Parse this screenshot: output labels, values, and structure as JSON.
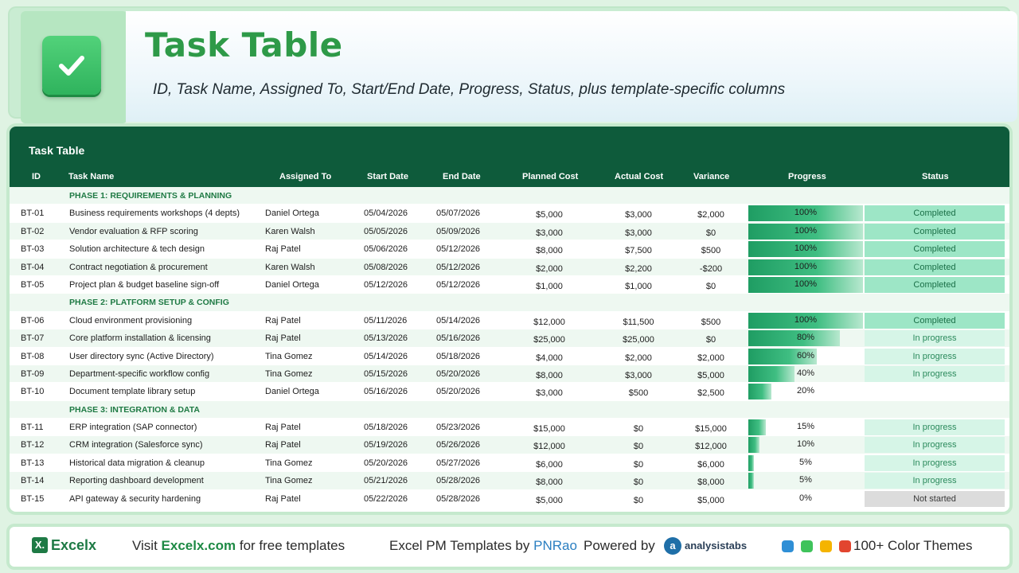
{
  "header": {
    "title": "Task Table",
    "subtitle": "ID, Task Name, Assigned To, Start/End Date, Progress, Status, plus template-specific columns",
    "icon": "checkmark-icon"
  },
  "table": {
    "title": "Task Table",
    "columns": {
      "id": "ID",
      "name": "Task Name",
      "assigned": "Assigned To",
      "start": "Start Date",
      "end": "End Date",
      "planned": "Planned Cost",
      "actual": "Actual Cost",
      "variance": "Variance",
      "progress": "Progress",
      "status": "Status"
    },
    "phases": [
      {
        "label": "PHASE 1: REQUIREMENTS & PLANNING",
        "tasks": [
          {
            "id": "BT-01",
            "name": "Business requirements workshops (4 depts)",
            "assigned": "Daniel Ortega",
            "start": "05/04/2026",
            "end": "05/07/2026",
            "planned": "$5,000",
            "actual": "$3,000",
            "variance": "$2,000",
            "progress_label": "100%",
            "progress": 100,
            "status": "Completed",
            "status_type": "completed"
          },
          {
            "id": "BT-02",
            "name": "Vendor evaluation & RFP scoring",
            "assigned": "Karen Walsh",
            "start": "05/05/2026",
            "end": "05/09/2026",
            "planned": "$3,000",
            "actual": "$3,000",
            "variance": "$0",
            "progress_label": "100%",
            "progress": 100,
            "status": "Completed",
            "status_type": "completed"
          },
          {
            "id": "BT-03",
            "name": "Solution architecture & tech design",
            "assigned": "Raj Patel",
            "start": "05/06/2026",
            "end": "05/12/2026",
            "planned": "$8,000",
            "actual": "$7,500",
            "variance": "$500",
            "progress_label": "100%",
            "progress": 100,
            "status": "Completed",
            "status_type": "completed"
          },
          {
            "id": "BT-04",
            "name": "Contract negotiation & procurement",
            "assigned": "Karen Walsh",
            "start": "05/08/2026",
            "end": "05/12/2026",
            "planned": "$2,000",
            "actual": "$2,200",
            "variance": "-$200",
            "progress_label": "100%",
            "progress": 100,
            "status": "Completed",
            "status_type": "completed"
          },
          {
            "id": "BT-05",
            "name": "Project plan & budget baseline sign-off",
            "assigned": "Daniel Ortega",
            "start": "05/12/2026",
            "end": "05/12/2026",
            "planned": "$1,000",
            "actual": "$1,000",
            "variance": "$0",
            "progress_label": "100%",
            "progress": 100,
            "status": "Completed",
            "status_type": "completed"
          }
        ]
      },
      {
        "label": "PHASE 2: PLATFORM SETUP & CONFIG",
        "tasks": [
          {
            "id": "BT-06",
            "name": "Cloud environment provisioning",
            "assigned": "Raj Patel",
            "start": "05/11/2026",
            "end": "05/14/2026",
            "planned": "$12,000",
            "actual": "$11,500",
            "variance": "$500",
            "progress_label": "100%",
            "progress": 100,
            "status": "Completed",
            "status_type": "completed"
          },
          {
            "id": "BT-07",
            "name": "Core platform installation & licensing",
            "assigned": "Raj Patel",
            "start": "05/13/2026",
            "end": "05/16/2026",
            "planned": "$25,000",
            "actual": "$25,000",
            "variance": "$0",
            "progress_label": "80%",
            "progress": 80,
            "status": "In progress",
            "status_type": "progress"
          },
          {
            "id": "BT-08",
            "name": "User directory sync (Active Directory)",
            "assigned": "Tina Gomez",
            "start": "05/14/2026",
            "end": "05/18/2026",
            "planned": "$4,000",
            "actual": "$2,000",
            "variance": "$2,000",
            "progress_label": "60%",
            "progress": 60,
            "status": "In progress",
            "status_type": "progress"
          },
          {
            "id": "BT-09",
            "name": "Department-specific workflow config",
            "assigned": "Tina Gomez",
            "start": "05/15/2026",
            "end": "05/20/2026",
            "planned": "$8,000",
            "actual": "$3,000",
            "variance": "$5,000",
            "progress_label": "40%",
            "progress": 40,
            "status": "In progress",
            "status_type": "progress"
          },
          {
            "id": "BT-10",
            "name": "Document template library setup",
            "assigned": "Daniel Ortega",
            "start": "05/16/2026",
            "end": "05/20/2026",
            "planned": "$3,000",
            "actual": "$500",
            "variance": "$2,500",
            "progress_label": "20%",
            "progress": 20,
            "status": "",
            "status_type": "none"
          }
        ]
      },
      {
        "label": "PHASE 3: INTEGRATION & DATA",
        "tasks": [
          {
            "id": "BT-11",
            "name": "ERP integration (SAP connector)",
            "assigned": "Raj Patel",
            "start": "05/18/2026",
            "end": "05/23/2026",
            "planned": "$15,000",
            "actual": "$0",
            "variance": "$15,000",
            "progress_label": "15%",
            "progress": 15,
            "status": "In progress",
            "status_type": "progress"
          },
          {
            "id": "BT-12",
            "name": "CRM integration (Salesforce sync)",
            "assigned": "Raj Patel",
            "start": "05/19/2026",
            "end": "05/26/2026",
            "planned": "$12,000",
            "actual": "$0",
            "variance": "$12,000",
            "progress_label": "10%",
            "progress": 10,
            "status": "In progress",
            "status_type": "progress"
          },
          {
            "id": "BT-13",
            "name": "Historical data migration & cleanup",
            "assigned": "Tina Gomez",
            "start": "05/20/2026",
            "end": "05/27/2026",
            "planned": "$6,000",
            "actual": "$0",
            "variance": "$6,000",
            "progress_label": "5%",
            "progress": 5,
            "status": "In progress",
            "status_type": "progress"
          },
          {
            "id": "BT-14",
            "name": "Reporting dashboard development",
            "assigned": "Tina Gomez",
            "start": "05/21/2026",
            "end": "05/28/2026",
            "planned": "$8,000",
            "actual": "$0",
            "variance": "$8,000",
            "progress_label": "5%",
            "progress": 5,
            "status": "In progress",
            "status_type": "progress"
          },
          {
            "id": "BT-15",
            "name": "API gateway & security hardening",
            "assigned": "Raj Patel",
            "start": "05/22/2026",
            "end": "05/28/2026",
            "planned": "$5,000",
            "actual": "$0",
            "variance": "$5,000",
            "progress_label": "0%",
            "progress": 0,
            "status": "Not started",
            "status_type": "notstarted"
          }
        ]
      }
    ]
  },
  "footer": {
    "brand_icon": "X.",
    "brand": "Excelx",
    "visit_prefix": "Visit",
    "visit_link": "Excelx.com",
    "visit_suffix": "for free templates",
    "templates_prefix": "Excel PM Templates by",
    "templates_author": "PNRao",
    "powered_by": "Powered by",
    "partner_icon": "a",
    "partner": "analysistabs",
    "themes_label": "100+ Color Themes",
    "theme_colors": [
      "#2f8fd6",
      "#3fc35b",
      "#f5b400",
      "#e2452f"
    ]
  }
}
